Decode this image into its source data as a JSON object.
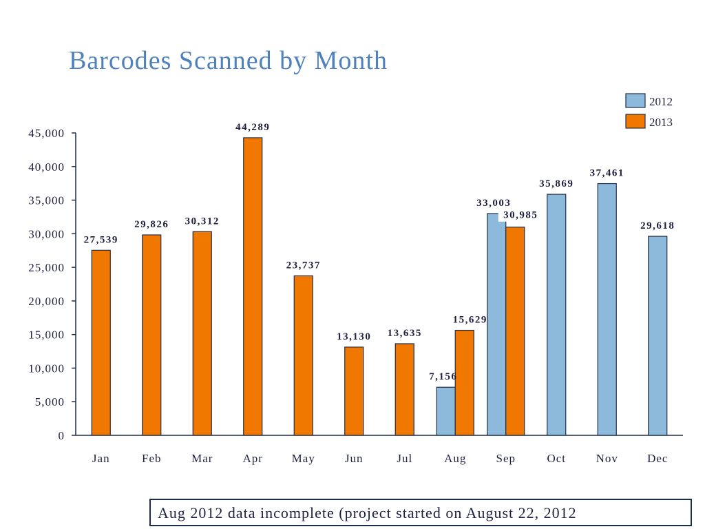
{
  "colors": {
    "2012": "#8db9da",
    "2013": "#f07800",
    "title": "#4f81bd",
    "axis": "#1f2d4a"
  },
  "chart_data": {
    "type": "bar",
    "title": "Barcodes Scanned by Month",
    "xlabel": "",
    "ylabel": "",
    "categories": [
      "Jan",
      "Feb",
      "Mar",
      "Apr",
      "May",
      "Jun",
      "Jul",
      "Aug",
      "Sep",
      "Oct",
      "Nov",
      "Dec"
    ],
    "series": [
      {
        "name": "2012",
        "values": [
          null,
          null,
          null,
          null,
          null,
          null,
          null,
          7156,
          33003,
          35869,
          37461,
          29618
        ]
      },
      {
        "name": "2013",
        "values": [
          27539,
          29826,
          30312,
          44289,
          23737,
          13130,
          13635,
          15629,
          30985,
          null,
          null,
          null
        ]
      }
    ],
    "data_labels": {
      "2012": [
        null,
        null,
        null,
        null,
        null,
        null,
        null,
        "7,156",
        "33,003",
        "35,869",
        "37,461",
        "29,618"
      ],
      "2013": [
        "27,539",
        "29,826",
        "30,312",
        "44,289",
        "23,737",
        "13,130",
        "13,635",
        "15,629",
        "30,985",
        null,
        null,
        null
      ]
    },
    "ylim": [
      0,
      45000
    ],
    "yticks": [
      0,
      5000,
      10000,
      15000,
      20000,
      25000,
      30000,
      35000,
      40000,
      45000
    ],
    "ytick_labels": [
      "0",
      "5,000",
      "10,000",
      "15,000",
      "20,000",
      "25,000",
      "30,000",
      "35,000",
      "40,000",
      "45,000"
    ],
    "grid": false,
    "legend": {
      "placement": "top-right",
      "entries": [
        "2012",
        "2013"
      ]
    }
  },
  "note": "Aug 2012 data incomplete (project started on August 22, 2012"
}
